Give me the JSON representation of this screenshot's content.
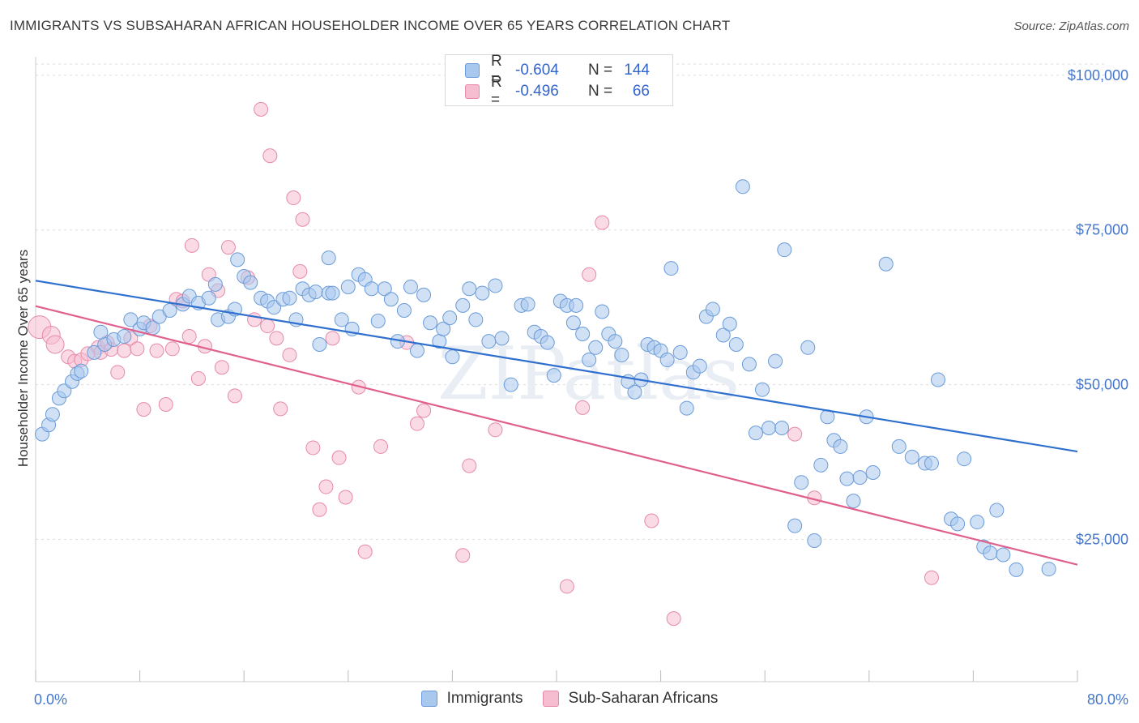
{
  "header": {
    "title": "IMMIGRANTS VS SUBSAHARAN AFRICAN HOUSEHOLDER INCOME OVER 65 YEARS CORRELATION CHART",
    "source": "Source: ZipAtlas.com"
  },
  "watermark": "ZIPatlas",
  "legend": {
    "rows": [
      {
        "r_label": "R =",
        "r_value": "-0.604",
        "n_label": "N =",
        "n_value": "144"
      },
      {
        "r_label": "R =",
        "r_value": "-0.496",
        "n_label": "N =",
        "n_value": "66"
      }
    ]
  },
  "colors": {
    "immigrants_fill": "#a9c8ee",
    "immigrants_stroke": "#6a9bd8",
    "immigrants_line": "#2f6fce",
    "africans_fill": "#f6bcd0",
    "africans_stroke": "#e68aaa",
    "africans_line": "#e0608d",
    "tick_text": "#4477cc",
    "grid": "#dddddd"
  },
  "chart_data": {
    "type": "scatter",
    "title": "IMMIGRANTS VS SUBSAHARAN AFRICAN HOUSEHOLDER INCOME OVER 65 YEARS CORRELATION CHART",
    "xlabel": "",
    "ylabel": "Householder Income Over 65 years",
    "xlim": [
      0,
      80
    ],
    "ylim": [
      2000,
      103000
    ],
    "x_tick_labels": [
      "0.0%",
      "80.0%"
    ],
    "y_ticks": [
      25000,
      50000,
      75000,
      100000
    ],
    "y_tick_labels": [
      "$25,000",
      "$50,000",
      "$75,000",
      "$100,000"
    ],
    "legend_position": "bottom",
    "series": [
      {
        "name": "Immigrants",
        "r": -0.604,
        "n": 144,
        "trend": {
          "x0": 0,
          "y0": 66800,
          "x1": 80,
          "y1": 39200
        },
        "points": [
          [
            0.5,
            42000
          ],
          [
            1.0,
            43500
          ],
          [
            1.3,
            45200
          ],
          [
            1.8,
            47800
          ],
          [
            2.2,
            49000
          ],
          [
            2.8,
            50500
          ],
          [
            3.2,
            51800
          ],
          [
            3.5,
            52200
          ],
          [
            4.5,
            55200
          ],
          [
            5.3,
            56500
          ],
          [
            5.0,
            58500
          ],
          [
            6.0,
            57300
          ],
          [
            6.8,
            57800
          ],
          [
            7.3,
            60500
          ],
          [
            8.0,
            59000
          ],
          [
            8.3,
            60000
          ],
          [
            9.0,
            59200
          ],
          [
            9.5,
            61000
          ],
          [
            10.3,
            62000
          ],
          [
            11.3,
            63000
          ],
          [
            11.8,
            64300
          ],
          [
            12.5,
            63200
          ],
          [
            13.3,
            64000
          ],
          [
            13.8,
            66200
          ],
          [
            14.0,
            60500
          ],
          [
            14.8,
            61000
          ],
          [
            15.3,
            62200
          ],
          [
            15.5,
            70200
          ],
          [
            16.0,
            67500
          ],
          [
            16.5,
            66500
          ],
          [
            17.3,
            64000
          ],
          [
            17.8,
            63500
          ],
          [
            18.3,
            62500
          ],
          [
            19.0,
            63800
          ],
          [
            19.5,
            64000
          ],
          [
            20.0,
            60500
          ],
          [
            20.5,
            65500
          ],
          [
            21.0,
            64500
          ],
          [
            21.5,
            65000
          ],
          [
            21.8,
            56500
          ],
          [
            22.5,
            64800
          ],
          [
            22.5,
            70500
          ],
          [
            22.8,
            64800
          ],
          [
            23.5,
            60500
          ],
          [
            24.0,
            65800
          ],
          [
            24.3,
            59000
          ],
          [
            24.8,
            67800
          ],
          [
            25.3,
            67000
          ],
          [
            25.8,
            65500
          ],
          [
            26.3,
            60300
          ],
          [
            26.8,
            65500
          ],
          [
            27.3,
            63800
          ],
          [
            27.8,
            57000
          ],
          [
            28.3,
            62000
          ],
          [
            28.8,
            65800
          ],
          [
            29.3,
            55500
          ],
          [
            29.8,
            64500
          ],
          [
            30.3,
            60000
          ],
          [
            31.0,
            57000
          ],
          [
            31.3,
            59000
          ],
          [
            31.8,
            60800
          ],
          [
            32.0,
            54500
          ],
          [
            32.8,
            62800
          ],
          [
            33.3,
            65500
          ],
          [
            33.8,
            60500
          ],
          [
            34.3,
            64800
          ],
          [
            34.8,
            57000
          ],
          [
            35.3,
            66000
          ],
          [
            35.8,
            57500
          ],
          [
            36.5,
            50000
          ],
          [
            37.3,
            62800
          ],
          [
            37.8,
            63000
          ],
          [
            38.3,
            58500
          ],
          [
            38.8,
            57800
          ],
          [
            39.3,
            56800
          ],
          [
            39.8,
            51500
          ],
          [
            40.3,
            63500
          ],
          [
            40.8,
            62800
          ],
          [
            41.3,
            60000
          ],
          [
            41.5,
            62800
          ],
          [
            42.0,
            58200
          ],
          [
            42.5,
            54000
          ],
          [
            43.0,
            56000
          ],
          [
            43.5,
            61800
          ],
          [
            44.0,
            58200
          ],
          [
            44.5,
            57000
          ],
          [
            45.0,
            54800
          ],
          [
            45.5,
            50500
          ],
          [
            46.0,
            48800
          ],
          [
            46.5,
            50800
          ],
          [
            47.0,
            56500
          ],
          [
            47.5,
            56000
          ],
          [
            48.0,
            55500
          ],
          [
            48.5,
            54000
          ],
          [
            48.8,
            68800
          ],
          [
            49.5,
            55200
          ],
          [
            50.0,
            46200
          ],
          [
            50.5,
            52000
          ],
          [
            51.0,
            53000
          ],
          [
            51.5,
            61000
          ],
          [
            52.0,
            62200
          ],
          [
            52.8,
            58000
          ],
          [
            53.3,
            59800
          ],
          [
            53.8,
            56500
          ],
          [
            54.3,
            82000
          ],
          [
            54.8,
            53300
          ],
          [
            55.8,
            49200
          ],
          [
            55.3,
            42200
          ],
          [
            56.3,
            43000
          ],
          [
            56.8,
            53800
          ],
          [
            57.3,
            43000
          ],
          [
            57.5,
            71800
          ],
          [
            58.3,
            27200
          ],
          [
            58.8,
            34200
          ],
          [
            59.3,
            56000
          ],
          [
            59.8,
            24800
          ],
          [
            60.3,
            37000
          ],
          [
            60.8,
            44800
          ],
          [
            61.3,
            41000
          ],
          [
            61.8,
            40000
          ],
          [
            62.3,
            34800
          ],
          [
            62.8,
            31200
          ],
          [
            63.3,
            35000
          ],
          [
            63.8,
            44800
          ],
          [
            64.3,
            35800
          ],
          [
            65.3,
            69500
          ],
          [
            66.3,
            40000
          ],
          [
            67.3,
            38300
          ],
          [
            68.3,
            37300
          ],
          [
            68.8,
            37300
          ],
          [
            69.3,
            50800
          ],
          [
            70.3,
            28300
          ],
          [
            70.8,
            27500
          ],
          [
            71.3,
            38000
          ],
          [
            72.3,
            27800
          ],
          [
            72.8,
            23800
          ],
          [
            73.3,
            22800
          ],
          [
            73.8,
            29700
          ],
          [
            74.3,
            22500
          ],
          [
            75.3,
            20100
          ],
          [
            77.8,
            20200
          ]
        ]
      },
      {
        "name": "Sub-Saharan Africans",
        "r": -0.496,
        "n": 66,
        "trend": {
          "x0": 0,
          "y0": 62700,
          "x1": 80,
          "y1": 20900
        },
        "points": [
          [
            0.3,
            59300
          ],
          [
            1.2,
            58000
          ],
          [
            1.5,
            56500
          ],
          [
            2.5,
            54500
          ],
          [
            3.0,
            53800
          ],
          [
            3.5,
            54000
          ],
          [
            4.0,
            55000
          ],
          [
            4.8,
            56000
          ],
          [
            5.0,
            55200
          ],
          [
            5.5,
            56800
          ],
          [
            5.8,
            55700
          ],
          [
            6.3,
            52000
          ],
          [
            6.8,
            55500
          ],
          [
            7.3,
            57500
          ],
          [
            7.8,
            55800
          ],
          [
            8.3,
            46000
          ],
          [
            8.8,
            59500
          ],
          [
            9.3,
            55500
          ],
          [
            10.0,
            46800
          ],
          [
            10.5,
            55800
          ],
          [
            10.8,
            63800
          ],
          [
            11.3,
            63500
          ],
          [
            11.8,
            57800
          ],
          [
            12.0,
            72500
          ],
          [
            12.5,
            51000
          ],
          [
            13.0,
            56200
          ],
          [
            13.3,
            67800
          ],
          [
            14.0,
            65200
          ],
          [
            14.3,
            52800
          ],
          [
            14.8,
            72200
          ],
          [
            15.3,
            48200
          ],
          [
            16.3,
            67300
          ],
          [
            16.8,
            60500
          ],
          [
            17.3,
            94500
          ],
          [
            17.8,
            59500
          ],
          [
            18.0,
            87000
          ],
          [
            18.5,
            57500
          ],
          [
            18.8,
            46100
          ],
          [
            19.5,
            54800
          ],
          [
            19.8,
            80200
          ],
          [
            20.3,
            68300
          ],
          [
            20.5,
            76700
          ],
          [
            21.3,
            39800
          ],
          [
            21.8,
            29800
          ],
          [
            22.3,
            33500
          ],
          [
            22.8,
            57500
          ],
          [
            23.3,
            38200
          ],
          [
            23.8,
            31800
          ],
          [
            24.8,
            49600
          ],
          [
            25.3,
            23000
          ],
          [
            26.5,
            40000
          ],
          [
            28.5,
            56800
          ],
          [
            29.3,
            43700
          ],
          [
            29.8,
            45800
          ],
          [
            32.8,
            22400
          ],
          [
            33.3,
            36900
          ],
          [
            35.3,
            42700
          ],
          [
            40.8,
            17400
          ],
          [
            42.0,
            46300
          ],
          [
            42.5,
            67800
          ],
          [
            43.5,
            76200
          ],
          [
            47.3,
            28000
          ],
          [
            49.0,
            12200
          ],
          [
            58.3,
            42000
          ],
          [
            59.8,
            31700
          ],
          [
            68.8,
            18800
          ]
        ]
      }
    ]
  }
}
